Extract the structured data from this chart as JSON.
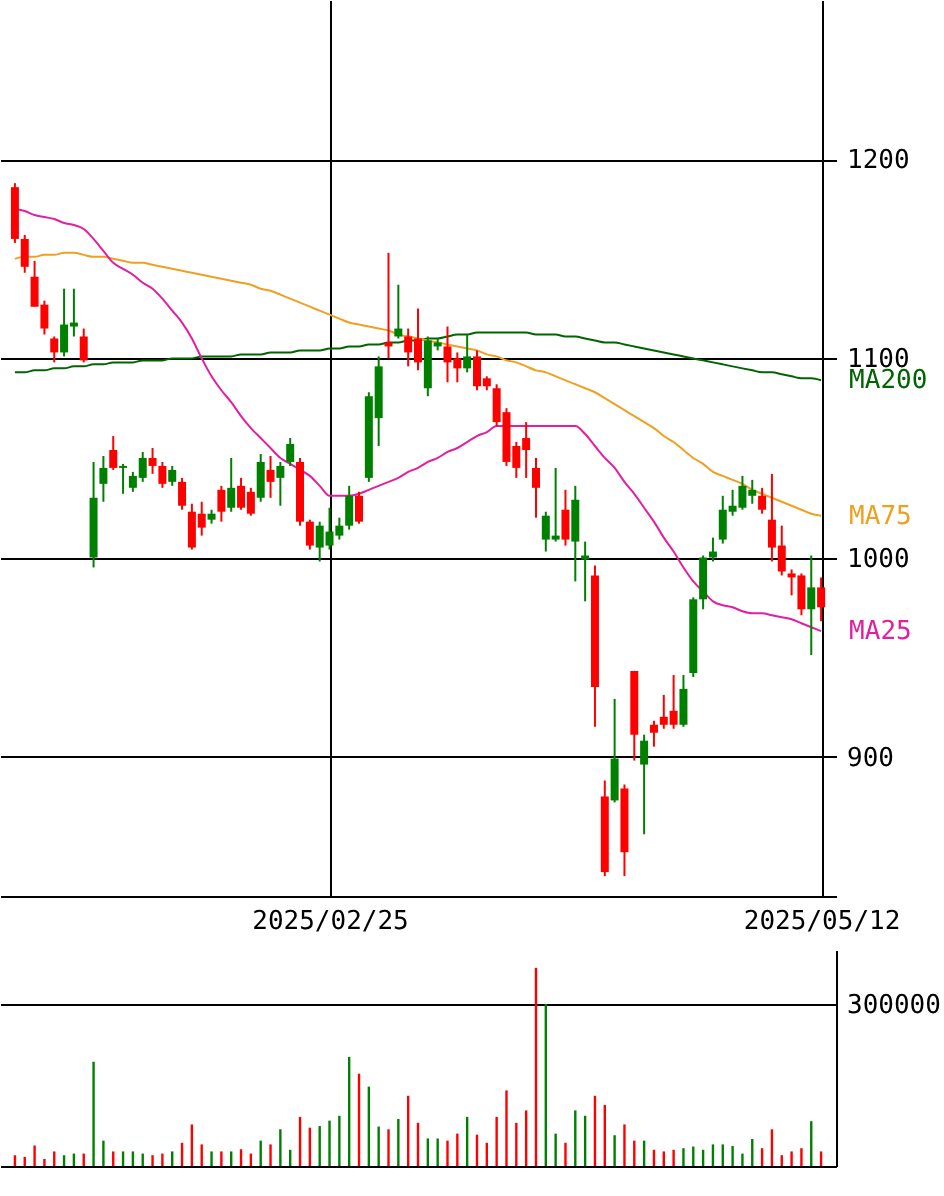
{
  "chart_data": [
    {
      "type": "candlestick",
      "categories": [
        null,
        null,
        null,
        null,
        null,
        null,
        null,
        null,
        null,
        null,
        null,
        null,
        null,
        null,
        null,
        null,
        null,
        null,
        null,
        null,
        null,
        null,
        null,
        null,
        null,
        null,
        null,
        null,
        null,
        null,
        null,
        null,
        "2025/02/25",
        null,
        null,
        null,
        null,
        null,
        null,
        null,
        null,
        null,
        null,
        null,
        null,
        null,
        null,
        null,
        null,
        null,
        null,
        null,
        null,
        null,
        null,
        null,
        null,
        null,
        null,
        null,
        null,
        null,
        null,
        null,
        null,
        null,
        null,
        null,
        null,
        null,
        null,
        null,
        null,
        null,
        null,
        null,
        null,
        null,
        null,
        null,
        null,
        null,
        "2025/05/12"
      ],
      "ohlc": [
        [
          1186,
          1188,
          1158,
          1160
        ],
        [
          1160,
          1162,
          1143,
          1146
        ],
        [
          1141,
          1149,
          1126,
          1126
        ],
        [
          1127,
          1129,
          1112,
          1115
        ],
        [
          1110,
          1111,
          1098,
          1103
        ],
        [
          1103,
          1135,
          1101,
          1117
        ],
        [
          1116,
          1135,
          1111,
          1118
        ],
        [
          1111,
          1115,
          1098,
          1099
        ],
        [
          1000,
          1048,
          995,
          1030
        ],
        [
          1037,
          1051,
          1028,
          1045
        ],
        [
          1054,
          1061,
          1044,
          1045
        ],
        [
          1045,
          1047,
          1032,
          1046
        ],
        [
          1035,
          1043,
          1033,
          1041
        ],
        [
          1040,
          1053,
          1038,
          1050
        ],
        [
          1050,
          1055,
          1042,
          1046
        ],
        [
          1046,
          1048,
          1035,
          1037
        ],
        [
          1038,
          1046,
          1036,
          1044
        ],
        [
          1038,
          1040,
          1024,
          1026
        ],
        [
          1023,
          1027,
          1004,
          1005
        ],
        [
          1022,
          1028,
          1011,
          1015
        ],
        [
          1019,
          1024,
          1017,
          1022
        ],
        [
          1034,
          1036,
          1018,
          1023
        ],
        [
          1025,
          1050,
          1023,
          1035
        ],
        [
          1036,
          1040,
          1024,
          1025
        ],
        [
          1033,
          1035,
          1021,
          1022
        ],
        [
          1030,
          1052,
          1028,
          1048
        ],
        [
          1044,
          1051,
          1030,
          1038
        ],
        [
          1040,
          1048,
          1026,
          1046
        ],
        [
          1048,
          1060,
          1046,
          1057
        ],
        [
          1048,
          1050,
          1016,
          1018
        ],
        [
          1018,
          1019,
          1004,
          1006
        ],
        [
          1005,
          1018,
          998,
          1016
        ],
        [
          1006,
          1025,
          1004,
          1013
        ],
        [
          1011,
          1020,
          1009,
          1016
        ],
        [
          1016,
          1036,
          1014,
          1031
        ],
        [
          1031,
          1033,
          1017,
          1018
        ],
        [
          1040,
          1083,
          1038,
          1081
        ],
        [
          1070,
          1101,
          1056,
          1096
        ],
        [
          1108,
          1153,
          1100,
          1106
        ],
        [
          1111,
          1137,
          1110,
          1115
        ],
        [
          1111,
          1115,
          1096,
          1103
        ],
        [
          1110,
          1125,
          1094,
          1098
        ],
        [
          1085,
          1111,
          1081,
          1109
        ],
        [
          1106,
          1110,
          1104,
          1108
        ],
        [
          1106,
          1116,
          1088,
          1098
        ],
        [
          1100,
          1103,
          1088,
          1095
        ],
        [
          1095,
          1112,
          1093,
          1101
        ],
        [
          1101,
          1104,
          1084,
          1086
        ],
        [
          1090,
          1091,
          1084,
          1086
        ],
        [
          1085,
          1087,
          1066,
          1068
        ],
        [
          1073,
          1075,
          1046,
          1048
        ],
        [
          1056,
          1058,
          1040,
          1045
        ],
        [
          1060,
          1068,
          1040,
          1054
        ],
        [
          1045,
          1050,
          1020,
          1035
        ],
        [
          1009,
          1023,
          1003,
          1021
        ],
        [
          1009,
          1045,
          1008,
          1011
        ],
        [
          1024,
          1034,
          1006,
          1009
        ],
        [
          1008,
          1036,
          988,
          1029
        ],
        [
          999,
          1008,
          978,
          1001
        ],
        [
          991,
          996,
          915,
          935
        ],
        [
          880,
          888,
          840,
          842
        ],
        [
          878,
          929,
          877,
          899
        ],
        [
          884,
          886,
          840,
          852
        ],
        [
          943,
          943,
          898,
          911
        ],
        [
          896,
          911,
          861,
          908
        ],
        [
          916,
          918,
          905,
          912
        ],
        [
          920,
          931,
          914,
          916
        ],
        [
          923,
          941,
          914,
          916
        ],
        [
          916,
          941,
          915,
          934
        ],
        [
          942,
          980,
          940,
          979
        ],
        [
          979,
          1001,
          974,
          1000
        ],
        [
          1000,
          1010,
          998,
          1003
        ],
        [
          1009,
          1031,
          1007,
          1024
        ],
        [
          1023,
          1034,
          1021,
          1026
        ],
        [
          1025,
          1041,
          1024,
          1036
        ],
        [
          1031,
          1039,
          1027,
          1034
        ],
        [
          1031,
          1035,
          1022,
          1024
        ],
        [
          1019,
          1042,
          998,
          1005
        ],
        [
          1006,
          1016,
          991,
          993
        ],
        [
          992,
          994,
          981,
          990
        ],
        [
          991,
          992,
          971,
          974
        ],
        [
          974,
          1001,
          951,
          985
        ],
        [
          985,
          990,
          968,
          975
        ]
      ],
      "colors": [
        "#ff0000",
        "#ff0000",
        "#ff0000",
        "#ff0000",
        "#ff0000",
        "#008000",
        "#008000",
        "#ff0000",
        "#008000",
        "#008000",
        "#ff0000",
        "#008000",
        "#008000",
        "#008000",
        "#ff0000",
        "#ff0000",
        "#008000",
        "#ff0000",
        "#ff0000",
        "#ff0000",
        "#008000",
        "#ff0000",
        "#008000",
        "#ff0000",
        "#ff0000",
        "#008000",
        "#ff0000",
        "#008000",
        "#008000",
        "#ff0000",
        "#ff0000",
        "#008000",
        "#008000",
        "#008000",
        "#008000",
        "#ff0000",
        "#008000",
        "#008000",
        "#ff0000",
        "#008000",
        "#ff0000",
        "#ff0000",
        "#008000",
        "#008000",
        "#ff0000",
        "#ff0000",
        "#008000",
        "#ff0000",
        "#ff0000",
        "#ff0000",
        "#ff0000",
        "#ff0000",
        "#ff0000",
        "#ff0000",
        "#008000",
        "#008000",
        "#ff0000",
        "#008000",
        "#008000",
        "#ff0000",
        "#ff0000",
        "#008000",
        "#ff0000",
        "#ff0000",
        "#008000",
        "#ff0000",
        "#ff0000",
        "#ff0000",
        "#008000",
        "#008000",
        "#008000",
        "#008000",
        "#008000",
        "#008000",
        "#008000",
        "#008000",
        "#ff0000",
        "#ff0000",
        "#ff0000",
        "#ff0000",
        "#ff0000",
        "#008000",
        "#ff0000"
      ],
      "series": [
        {
          "name": "MA200",
          "type": "line",
          "color": "#006400",
          "values": [
            1093,
            1093,
            1094,
            1094,
            1095,
            1095,
            1096,
            1096,
            1097,
            1097,
            1098,
            1098,
            1098,
            1099,
            1099,
            1099,
            1100,
            1100,
            1100,
            1101,
            1101,
            1101,
            1101,
            1102,
            1102,
            1102,
            1103,
            1103,
            1103,
            1104,
            1104,
            1104,
            1105,
            1105,
            1106,
            1106,
            1107,
            1107,
            1108,
            1108,
            1109,
            1109,
            1110,
            1110,
            1111,
            1112,
            1112,
            1113,
            1113,
            1113,
            1113,
            1113,
            1113,
            1112,
            1112,
            1112,
            1111,
            1111,
            1110,
            1109,
            1108,
            1108,
            1107,
            1106,
            1105,
            1104,
            1103,
            1102,
            1101,
            1100,
            1099,
            1098,
            1097,
            1096,
            1095,
            1094,
            1093,
            1093,
            1092,
            1091,
            1090,
            1090,
            1089
          ]
        },
        {
          "name": "MA75",
          "type": "line",
          "color": "#f0a020",
          "values": [
            1150,
            1151,
            1151,
            1152,
            1152,
            1153,
            1153,
            1152,
            1151,
            1151,
            1150,
            1149,
            1148,
            1148,
            1147,
            1146,
            1145,
            1144,
            1143,
            1142,
            1141,
            1140,
            1139,
            1138,
            1137,
            1135,
            1134,
            1132,
            1130,
            1128,
            1126,
            1124,
            1122,
            1120,
            1118,
            1117,
            1116,
            1115,
            1114,
            1112,
            1111,
            1110,
            1109,
            1108,
            1107,
            1106,
            1105,
            1104,
            1102,
            1101,
            1099,
            1098,
            1096,
            1094,
            1093,
            1091,
            1089,
            1087,
            1085,
            1083,
            1080,
            1077,
            1074,
            1071,
            1068,
            1065,
            1061,
            1058,
            1054,
            1050,
            1047,
            1043,
            1041,
            1039,
            1037,
            1034,
            1032,
            1030,
            1028,
            1026,
            1024,
            1022,
            1021
          ]
        },
        {
          "name": "MA25",
          "type": "line",
          "color": "#e020a0",
          "values": [
            1175,
            1174,
            1172,
            1171,
            1170,
            1168,
            1167,
            1165,
            1160,
            1154,
            1148,
            1145,
            1142,
            1138,
            1135,
            1130,
            1124,
            1118,
            1110,
            1100,
            1091,
            1084,
            1078,
            1071,
            1065,
            1060,
            1055,
            1050,
            1047,
            1044,
            1041,
            1036,
            1031,
            1031,
            1031,
            1032,
            1034,
            1036,
            1038,
            1040,
            1043,
            1045,
            1048,
            1050,
            1053,
            1055,
            1058,
            1061,
            1063,
            1066,
            1066,
            1066,
            1066,
            1066,
            1066,
            1066,
            1066,
            1066,
            1062,
            1056,
            1050,
            1045,
            1038,
            1032,
            1025,
            1018,
            1010,
            1003,
            995,
            988,
            983,
            978,
            976,
            975,
            973,
            972,
            972,
            971,
            970,
            969,
            967,
            965,
            963
          ]
        }
      ],
      "ylim": [
        830,
        1280
      ],
      "yticks": [
        900,
        1000,
        1100,
        1200
      ],
      "grid": true
    },
    {
      "type": "bar",
      "categories": [
        null,
        null,
        null,
        null,
        null,
        null,
        null,
        null,
        null,
        null,
        null,
        null,
        null,
        null,
        null,
        null,
        null,
        null,
        null,
        null,
        null,
        null,
        null,
        null,
        null,
        null,
        null,
        null,
        null,
        null,
        null,
        null,
        "2025/02/25",
        null,
        null,
        null,
        null,
        null,
        null,
        null,
        null,
        null,
        null,
        null,
        null,
        null,
        null,
        null,
        null,
        null,
        null,
        null,
        null,
        null,
        null,
        null,
        null,
        null,
        null,
        null,
        null,
        null,
        null,
        null,
        null,
        null,
        null,
        null,
        null,
        null,
        null,
        null,
        null,
        null,
        null,
        null,
        null,
        null,
        null,
        null,
        null,
        null,
        "2025/05/12"
      ],
      "values": [
        20000,
        17000,
        38000,
        13000,
        27000,
        20000,
        23000,
        23000,
        193000,
        47000,
        27000,
        27000,
        27000,
        23000,
        20000,
        23000,
        27000,
        43000,
        77000,
        40000,
        27000,
        27000,
        27000,
        31000,
        23000,
        47000,
        40000,
        68000,
        30000,
        91000,
        71000,
        74000,
        84000,
        93000,
        202000,
        171000,
        147000,
        73000,
        68000,
        87000,
        130000,
        80000,
        51000,
        51000,
        47000,
        60000,
        91000,
        58000,
        43000,
        91000,
        140000,
        80000,
        103000,
        367000,
        300000,
        60000,
        43000,
        103000,
        93000,
        130000,
        113000,
        57000,
        77000,
        47000,
        47000,
        30000,
        27000,
        30000,
        33000,
        36000,
        30000,
        40000,
        40000,
        37000,
        23000,
        50000,
        33000,
        68000,
        20000,
        27000,
        33000,
        83000,
        27000
      ],
      "colors": [
        "#ff0000",
        "#ff0000",
        "#ff0000",
        "#ff0000",
        "#ff0000",
        "#008000",
        "#008000",
        "#ff0000",
        "#008000",
        "#008000",
        "#ff0000",
        "#008000",
        "#008000",
        "#008000",
        "#ff0000",
        "#ff0000",
        "#008000",
        "#ff0000",
        "#ff0000",
        "#ff0000",
        "#008000",
        "#ff0000",
        "#008000",
        "#ff0000",
        "#ff0000",
        "#008000",
        "#ff0000",
        "#008000",
        "#008000",
        "#ff0000",
        "#ff0000",
        "#008000",
        "#008000",
        "#008000",
        "#008000",
        "#ff0000",
        "#008000",
        "#008000",
        "#ff0000",
        "#008000",
        "#ff0000",
        "#ff0000",
        "#008000",
        "#008000",
        "#ff0000",
        "#ff0000",
        "#008000",
        "#ff0000",
        "#ff0000",
        "#ff0000",
        "#ff0000",
        "#ff0000",
        "#ff0000",
        "#ff0000",
        "#008000",
        "#008000",
        "#ff0000",
        "#008000",
        "#008000",
        "#ff0000",
        "#ff0000",
        "#008000",
        "#ff0000",
        "#ff0000",
        "#008000",
        "#ff0000",
        "#ff0000",
        "#ff0000",
        "#008000",
        "#008000",
        "#008000",
        "#008000",
        "#008000",
        "#008000",
        "#008000",
        "#008000",
        "#ff0000",
        "#ff0000",
        "#ff0000",
        "#ff0000",
        "#ff0000",
        "#008000",
        "#ff0000"
      ],
      "ylim": [
        0,
        400000
      ],
      "yticks": [
        {
          "value": 0,
          "label": null
        },
        300000
      ],
      "grid": "y",
      "tick_labels": "y"
    }
  ]
}
